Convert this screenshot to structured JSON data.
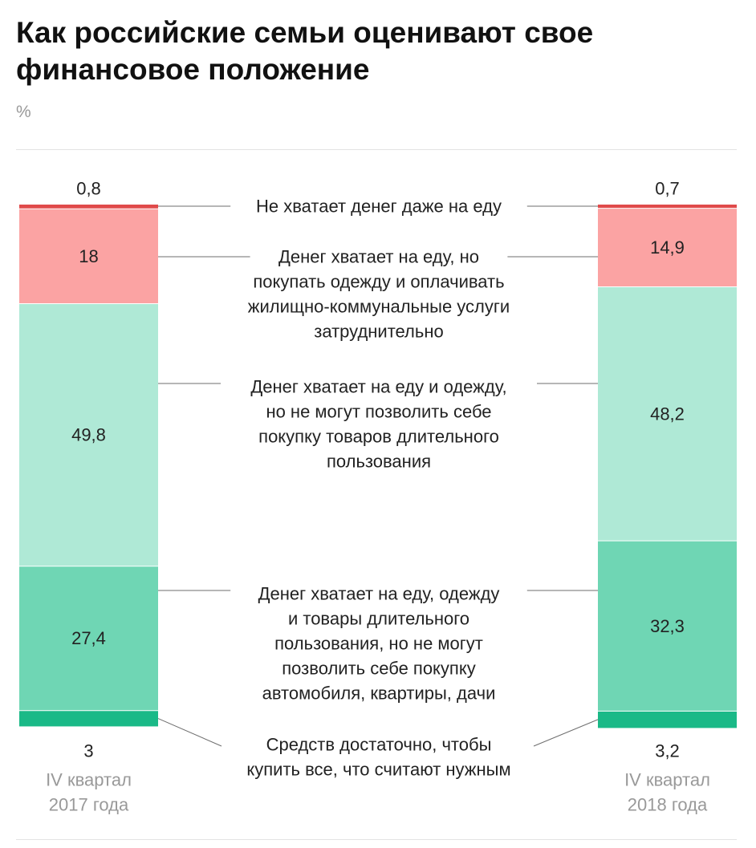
{
  "title": "Как российские семьи оценивают свое финансовое положение",
  "unit": "%",
  "colors": {
    "cat0": "#e04a4a",
    "cat1": "#fba3a3",
    "cat2": "#afe9d6",
    "cat3": "#6fd6b4",
    "cat4": "#1ab987",
    "leader": "#6e6e6e",
    "axis_label": "#999999"
  },
  "chart_data": {
    "type": "bar",
    "stacked": true,
    "title": "Как российские семьи оценивают свое финансовое положение",
    "unit": "%",
    "categories": [
      "IV квартал 2017 года",
      "IV квартал 2018 года"
    ],
    "category_lines": [
      [
        "IV квартал",
        "2017 года"
      ],
      [
        "IV квартал",
        "2018 года"
      ]
    ],
    "series": [
      {
        "name": "Не хватает денег даже на еду",
        "label_lines": [
          "Не хватает денег даже на еду"
        ],
        "values": [
          0.8,
          0.7
        ],
        "labels": [
          "0,8",
          "0,7"
        ]
      },
      {
        "name": "Денег хватает на еду, но покупать одежду и оплачивать жилищно-коммунальные услуги затруднительно",
        "label_lines": [
          "Денег хватает на еду, но",
          "покупать одежду и оплачивать",
          "жилищно-коммунальные услуги",
          "затруднительно"
        ],
        "values": [
          18,
          14.9
        ],
        "labels": [
          "18",
          "14,9"
        ]
      },
      {
        "name": "Денег хватает на еду и одежду, но не могут позволить себе покупку товаров длительного пользования",
        "label_lines": [
          "Денег хватает на еду и одежду,",
          "но не могут позволить себе",
          "покупку товаров длительного",
          "пользования"
        ],
        "values": [
          49.8,
          48.2
        ],
        "labels": [
          "49,8",
          "48,2"
        ]
      },
      {
        "name": "Денег хватает на еду, одежду и товары длительного пользования, но не могут позволить себе покупку автомобиля, квартиры, дачи",
        "label_lines": [
          "Денег хватает на еду, одежду",
          "и товары длительного",
          "пользования, но не могут",
          "позволить себе покупку",
          "автомобиля, квартиры, дачи"
        ],
        "values": [
          27.4,
          32.3
        ],
        "labels": [
          "27,4",
          "32,3"
        ]
      },
      {
        "name": "Средств достаточно, чтобы купить все, что считают нужным",
        "label_lines": [
          "Средств достаточно, чтобы",
          "купить все, что считают нужным"
        ],
        "values": [
          3,
          3.2
        ],
        "labels": [
          "3",
          "3,2"
        ]
      }
    ],
    "legend": "center, between bars"
  }
}
